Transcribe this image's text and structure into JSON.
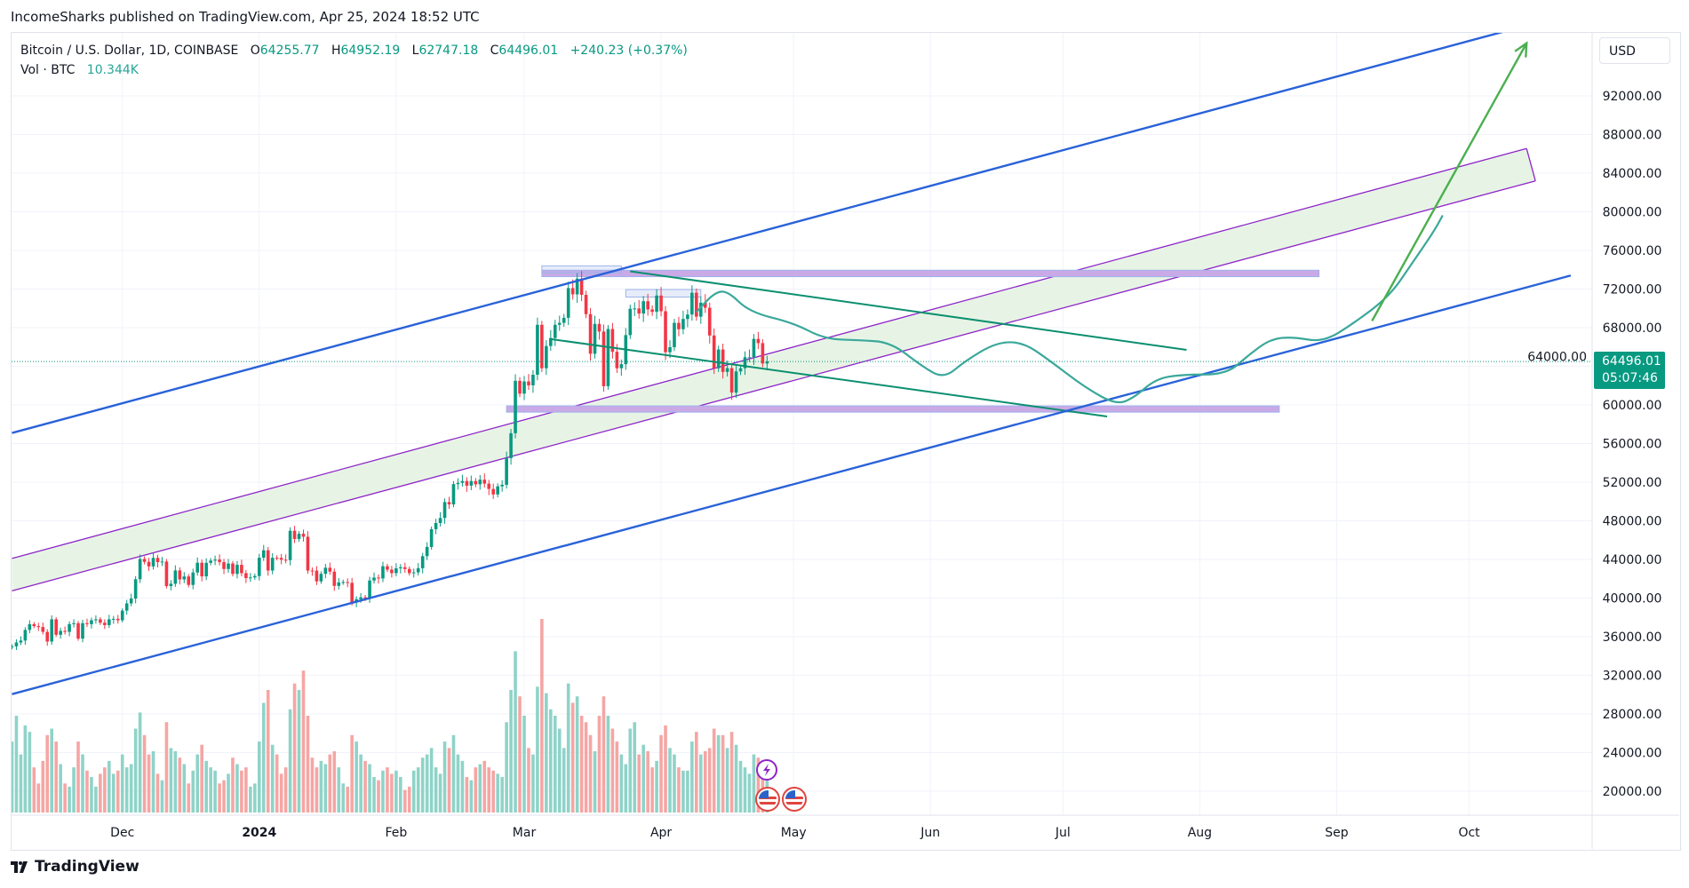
{
  "header": {
    "published": "IncomeSharks published on TradingView.com, Apr 25, 2024 18:52 UTC"
  },
  "legend": {
    "symbol": "Bitcoin / U.S. Dollar, 1D, COINBASE",
    "o_label": "O",
    "o": "64255.77",
    "h_label": "H",
    "h": "64952.19",
    "l_label": "L",
    "l": "62747.18",
    "c_label": "C",
    "c": "64496.01",
    "change": "+240.23 (+0.37%)",
    "vol_label": "Vol · BTC",
    "vol": "10.344K"
  },
  "currency_button": "USD",
  "last_price": {
    "price": "64496.01",
    "countdown": "05:07:46"
  },
  "branding": "TradingView",
  "colors": {
    "up": "#089981",
    "down": "#f23645",
    "vol_up": "#8fd3c8",
    "vol_down": "#f5a6a4",
    "channel": "#2962d9",
    "purple": "#8e24c8",
    "band_fill": "#e3f2e1",
    "zone": "#c9a9e6",
    "zone_edge": "#9fb4ea",
    "trend": "#0b8f6f",
    "projection": "#3aa89a",
    "arrow": "#4caf50"
  },
  "icons": [
    "lightning-event-icon",
    "us-flag-event-icon",
    "us-flag-event-icon"
  ],
  "chart_data": {
    "type": "candlestick",
    "start_date": "2023-11-06",
    "y_ticks": [
      92000,
      88000,
      84000,
      80000,
      76000,
      72000,
      68000,
      64000,
      60000,
      56000,
      52000,
      48000,
      44000,
      40000,
      36000,
      32000,
      28000,
      24000,
      20000
    ],
    "y_tick_labels": [
      "92000.00",
      "88000.00",
      "84000.00",
      "80000.00",
      "76000.00",
      "72000.00",
      "68000.00",
      "64000.00",
      "60000.00",
      "56000.00",
      "52000.00",
      "48000.00",
      "44000.00",
      "40000.00",
      "36000.00",
      "32000.00",
      "28000.00",
      "24000.00",
      "20000.00"
    ],
    "x_ticks": [
      {
        "label": "Dec",
        "date": "2023-12-01"
      },
      {
        "label": "2024",
        "date": "2024-01-01"
      },
      {
        "label": "Feb",
        "date": "2024-02-01"
      },
      {
        "label": "Mar",
        "date": "2024-03-01"
      },
      {
        "label": "Apr",
        "date": "2024-04-01"
      },
      {
        "label": "May",
        "date": "2024-05-01"
      },
      {
        "label": "Jun",
        "date": "2024-06-01"
      },
      {
        "label": "Jul",
        "date": "2024-07-01"
      },
      {
        "label": "Aug",
        "date": "2024-08-01"
      },
      {
        "label": "Sep",
        "date": "2024-09-01"
      },
      {
        "label": "Oct",
        "date": "2024-10-01"
      }
    ],
    "closes": [
      35000,
      35400,
      35600,
      36700,
      37300,
      37100,
      37000,
      36500,
      35500,
      37800,
      36200,
      36600,
      36500,
      37300,
      37400,
      35800,
      37400,
      37300,
      37700,
      37800,
      37450,
      37200,
      37800,
      37850,
      37700,
      38700,
      39450,
      39950,
      41950,
      44050,
      43750,
      43280,
      44160,
      43720,
      43780,
      41240,
      41480,
      42860,
      41930,
      42240,
      41360,
      42650,
      43660,
      42250,
      43650,
      43880,
      43990,
      43720,
      43010,
      43580,
      42500,
      43440,
      42580,
      42070,
      42140,
      42280,
      44180,
      44950,
      42850,
      44170,
      44160,
      43970,
      43930,
      46970,
      46120,
      46660,
      46350,
      42850,
      42840,
      41730,
      42510,
      43140,
      42740,
      41260,
      41620,
      41660,
      41580,
      39540,
      39880,
      40080,
      39930,
      41820,
      42120,
      42030,
      43300,
      42940,
      42580,
      43080,
      43190,
      43010,
      42580,
      42660,
      43090,
      44340,
      45290,
      47130,
      47770,
      48290,
      49940,
      49700,
      51800,
      51930,
      52120,
      51640,
      52120,
      51780,
      52260,
      51850,
      51300,
      50730,
      51570,
      51730,
      54490,
      57070,
      62500,
      61170,
      62430,
      62030,
      63130,
      68300,
      63800,
      66100,
      66930,
      68300,
      68500,
      69020,
      72100,
      71450,
      73080,
      71400,
      69400,
      65300,
      68390,
      67600,
      61940,
      67860,
      65500,
      63800,
      64220,
      67230,
      69960,
      69990,
      69460,
      70740,
      69890,
      69640,
      71330,
      69700,
      65460,
      65980,
      68500,
      67840,
      68900,
      69360,
      71620,
      69140,
      70590,
      70060,
      67190,
      63790,
      65740,
      63420,
      63810,
      61280,
      63470,
      63800,
      64940,
      64940,
      66840,
      66400,
      64290,
      64496.01
    ],
    "first_open": 34900,
    "volumes_k": [
      22,
      30,
      18,
      27,
      25,
      14,
      9,
      16,
      24,
      26,
      22,
      15,
      9,
      8,
      14,
      22,
      18,
      13,
      11,
      8,
      12,
      14,
      16,
      12,
      13,
      18,
      14,
      15,
      26,
      31,
      24,
      18,
      19,
      12,
      10,
      28,
      20,
      19,
      17,
      15,
      9,
      13,
      18,
      21,
      16,
      14,
      13,
      9,
      10,
      12,
      17,
      15,
      13,
      14,
      8,
      9,
      22,
      34,
      38,
      21,
      18,
      12,
      14,
      32,
      40,
      38,
      44,
      30,
      17,
      14,
      16,
      15,
      18,
      19,
      14,
      9,
      8,
      24,
      22,
      18,
      16,
      15,
      11,
      10,
      13,
      14,
      12,
      13,
      11,
      7,
      8,
      13,
      14,
      17,
      18,
      20,
      14,
      12,
      22,
      20,
      24,
      18,
      16,
      11,
      10,
      14,
      15,
      16,
      14,
      13,
      12,
      11,
      28,
      38,
      50,
      36,
      30,
      20,
      18,
      39,
      60,
      37,
      32,
      30,
      26,
      20,
      40,
      34,
      36,
      30,
      28,
      24,
      19,
      30,
      36,
      30,
      26,
      22,
      18,
      15,
      26,
      28,
      18,
      21,
      19,
      14,
      16,
      24,
      27,
      20,
      18,
      14,
      13,
      13,
      22,
      25,
      18,
      19,
      20,
      26,
      24,
      24,
      20,
      25,
      21,
      16,
      14,
      12,
      18,
      17,
      15,
      10.344
    ],
    "drawings": {
      "channel_upper": [
        [
          "2023-11-06",
          57100
        ],
        [
          "2024-10-10",
          98800
        ]
      ],
      "channel_lower": [
        [
          "2023-11-06",
          30050
        ],
        [
          "2024-10-24",
          73400
        ]
      ],
      "band_upper": [
        [
          "2023-11-06",
          44100
        ],
        [
          "2024-10-14",
          86550
        ]
      ],
      "band_lower": [
        [
          "2023-11-06",
          40750
        ],
        [
          "2024-10-16",
          83200
        ]
      ],
      "zone_top": {
        "from": "2024-03-05",
        "to": "2024-08-28",
        "high": 73950,
        "low": 73280
      },
      "zone_bottom": {
        "from": "2024-02-26",
        "to": "2024-08-19",
        "high": 59900,
        "low": 59250
      },
      "box_1": {
        "from": "2024-03-05",
        "to": "2024-03-23",
        "high": 74400,
        "low": 73650
      },
      "box_2": {
        "from": "2024-03-24",
        "to": "2024-04-10",
        "high": 71950,
        "low": 71170
      },
      "trend_upper": [
        [
          "2024-03-25",
          73840
        ],
        [
          "2024-07-29",
          65700
        ]
      ],
      "trend_lower": [
        [
          "2024-03-07",
          66820
        ],
        [
          "2024-07-11",
          58800
        ]
      ],
      "arrow": [
        [
          "2024-09-09",
          68700
        ],
        [
          "2024-10-14",
          97460
        ]
      ],
      "projection": [
        [
          "2024-04-09",
          69610
        ],
        [
          "2024-04-13",
          71610
        ],
        [
          "2024-04-16",
          71840
        ],
        [
          "2024-04-21",
          69610
        ],
        [
          "2024-05-01",
          68500
        ],
        [
          "2024-05-08",
          66820
        ],
        [
          "2024-05-16",
          66710
        ],
        [
          "2024-05-23",
          66490
        ],
        [
          "2024-05-30",
          64040
        ],
        [
          "2024-06-04",
          62700
        ],
        [
          "2024-06-09",
          64600
        ],
        [
          "2024-06-16",
          66490
        ],
        [
          "2024-06-22",
          66490
        ],
        [
          "2024-06-28",
          64600
        ],
        [
          "2024-07-06",
          61810
        ],
        [
          "2024-07-13",
          60030
        ],
        [
          "2024-07-17",
          60700
        ],
        [
          "2024-07-22",
          62700
        ],
        [
          "2024-07-28",
          63150
        ],
        [
          "2024-08-07",
          63150
        ],
        [
          "2024-08-12",
          65150
        ],
        [
          "2024-08-17",
          66820
        ],
        [
          "2024-08-22",
          67050
        ],
        [
          "2024-08-29",
          66490
        ],
        [
          "2024-09-05",
          68500
        ],
        [
          "2024-09-13",
          71280
        ],
        [
          "2024-09-18",
          74620
        ],
        [
          "2024-09-23",
          77960
        ],
        [
          "2024-09-25",
          79630
        ]
      ]
    }
  }
}
